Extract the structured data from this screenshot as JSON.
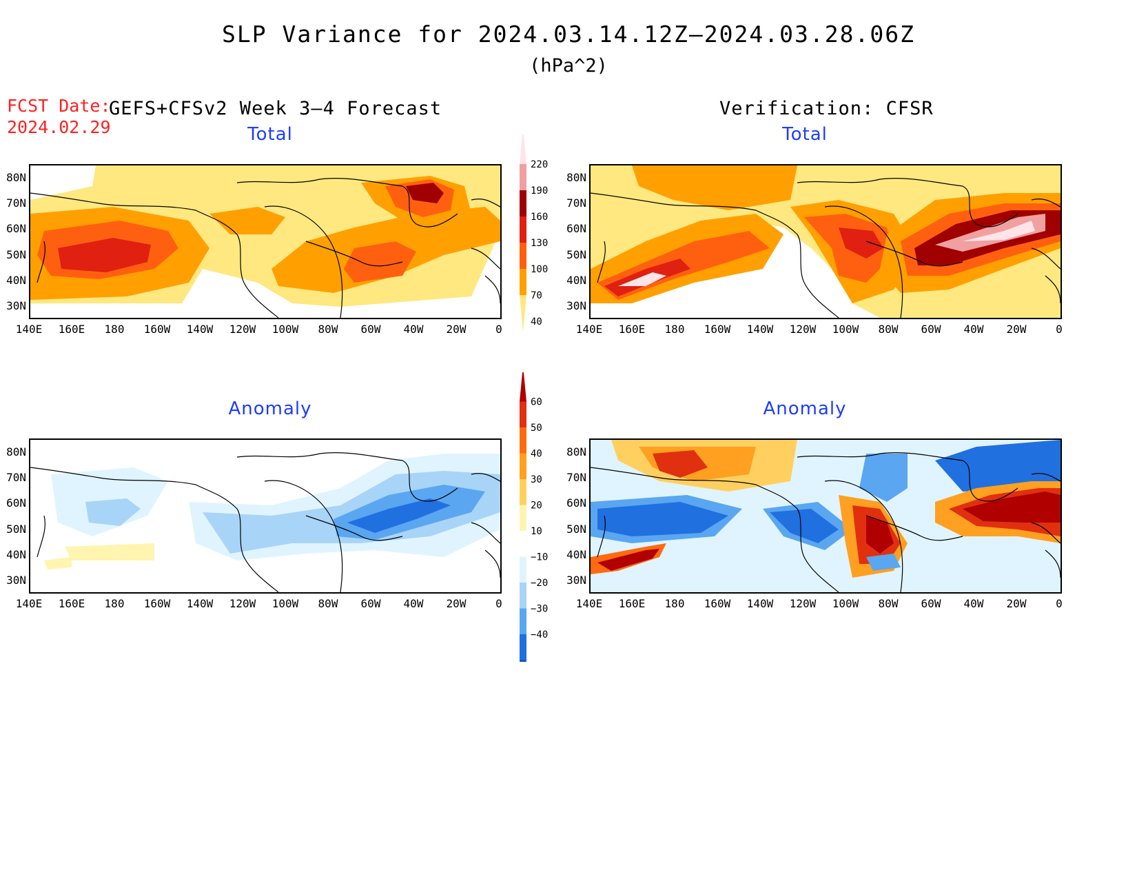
{
  "title": "SLP Variance for 2024.03.14.12Z–2024.03.28.06Z",
  "units": "(hPa^2)",
  "fcst_label": "FCST Date:",
  "fcst_date": "2024.02.29",
  "left_header": "GEFS+CFSv2 Week 3–4 Forecast",
  "right_header": "Verification: CFSR",
  "panels": {
    "top_left": {
      "title": "Total"
    },
    "top_right": {
      "title": "Total"
    },
    "bottom_left": {
      "title": "Anomaly"
    },
    "bottom_right": {
      "title": "Anomaly"
    }
  },
  "lat_labels": [
    "80N",
    "70N",
    "60N",
    "50N",
    "40N",
    "30N"
  ],
  "lon_labels": [
    "140E",
    "160E",
    "180",
    "160W",
    "140W",
    "120W",
    "100W",
    "80W",
    "60W",
    "40W",
    "20W",
    "0"
  ],
  "total_colorbar": {
    "labels": [
      "220",
      "190",
      "160",
      "130",
      "100",
      "70",
      "40"
    ],
    "colors": [
      "#ffe4e8",
      "#f0a0a0",
      "#a00000",
      "#e02010",
      "#ff6010",
      "#ffa000",
      "#ffe880"
    ]
  },
  "anomaly_colorbar": {
    "labels": [
      "60",
      "50",
      "40",
      "30",
      "20",
      "10",
      "−10",
      "−20",
      "−30",
      "−40"
    ],
    "colors": [
      "#b00000",
      "#e03010",
      "#ff6a10",
      "#ffa020",
      "#ffd060",
      "#fff4b0",
      "#ffffff",
      "#e0f4ff",
      "#a8d4f8",
      "#5aa6f0",
      "#2070e0",
      "#1050c0"
    ]
  },
  "colors": {
    "title_blue": "#1d3cff",
    "fcst_red": "#ff2020"
  }
}
